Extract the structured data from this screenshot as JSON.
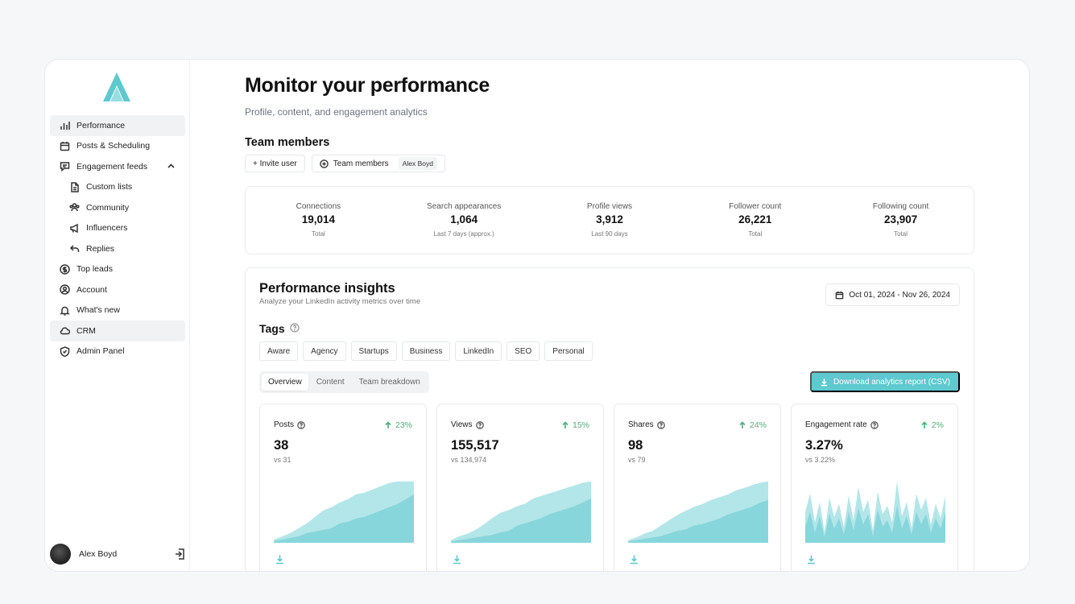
{
  "colors": {
    "accent": "#5ec9cf",
    "chart_light": "#b3e6e9",
    "chart_dark": "#7fd2d8",
    "positive": "#4caf7a"
  },
  "sidebar": {
    "items": [
      {
        "label": "Performance",
        "icon": "bar-chart-icon",
        "active": true
      },
      {
        "label": "Posts & Scheduling",
        "icon": "calendar-icon"
      },
      {
        "label": "Engagement feeds",
        "icon": "chat-icon",
        "expanded": true
      },
      {
        "label": "Custom lists",
        "icon": "document-icon",
        "sub": true
      },
      {
        "label": "Community",
        "icon": "community-icon",
        "sub": true
      },
      {
        "label": "Influencers",
        "icon": "megaphone-icon",
        "sub": true
      },
      {
        "label": "Replies",
        "icon": "reply-icon",
        "sub": true
      },
      {
        "label": "Top leads",
        "icon": "dollar-icon"
      },
      {
        "label": "Account",
        "icon": "user-circle-icon"
      },
      {
        "label": "What's new",
        "icon": "bell-icon"
      },
      {
        "label": "CRM",
        "icon": "cloud-icon",
        "active": true
      },
      {
        "label": "Admin Panel",
        "icon": "shield-icon"
      }
    ],
    "user": {
      "name": "Alex Boyd"
    }
  },
  "header": {
    "title": "Monitor your performance",
    "subtitle": "Profile, content, and engagement analytics"
  },
  "team": {
    "title": "Team members",
    "invite_label": "+ Invite user",
    "members_label": "Team members",
    "selected_member": "Alex Boyd"
  },
  "stats": [
    {
      "label": "Connections",
      "value": "19,014",
      "sub": "Total"
    },
    {
      "label": "Search appearances",
      "value": "1,064",
      "sub": "Last 7 days (approx.)"
    },
    {
      "label": "Profile views",
      "value": "3,912",
      "sub": "Last 90 days"
    },
    {
      "label": "Follower count",
      "value": "26,221",
      "sub": "Total"
    },
    {
      "label": "Following count",
      "value": "23,907",
      "sub": "Total"
    }
  ],
  "insights": {
    "title": "Performance insights",
    "subtitle": "Analyze your LinkedIn activity metrics over time",
    "date_range": "Oct 01, 2024 - Nov 26, 2024",
    "tags_title": "Tags",
    "tags": [
      "Aware",
      "Agency",
      "Startups",
      "Business",
      "LinkedIn",
      "SEO",
      "Personal"
    ],
    "tabs": [
      "Overview",
      "Content",
      "Team breakdown"
    ],
    "active_tab": "Overview",
    "download_label": "Download analytics report (CSV)"
  },
  "cards": [
    {
      "label": "Posts",
      "value": "38",
      "vs": "vs 31",
      "delta": "23%"
    },
    {
      "label": "Views",
      "value": "155,517",
      "vs": "vs 134,974",
      "delta": "15%"
    },
    {
      "label": "Shares",
      "value": "98",
      "vs": "vs 79",
      "delta": "24%"
    },
    {
      "label": "Engagement rate",
      "value": "3.27%",
      "vs": "vs 3.22%",
      "delta": "2%"
    }
  ],
  "chart_data": [
    {
      "type": "area",
      "title": "Posts",
      "series": [
        {
          "values": [
            2,
            4,
            6,
            9,
            12,
            16,
            20,
            22,
            25,
            27,
            30,
            31,
            33,
            35,
            37,
            38,
            38,
            38
          ]
        },
        {
          "values": [
            1,
            2,
            3,
            4,
            6,
            7,
            8,
            9,
            12,
            13,
            15,
            16,
            18,
            20,
            22,
            24,
            27,
            30
          ]
        }
      ]
    },
    {
      "type": "area",
      "title": "Views",
      "series": [
        {
          "values": [
            2,
            5,
            7,
            10,
            14,
            19,
            23,
            25,
            28,
            30,
            34,
            36,
            38,
            40,
            42,
            44,
            46,
            47
          ]
        },
        {
          "values": [
            1,
            2,
            3,
            4,
            5,
            6,
            8,
            9,
            13,
            15,
            17,
            19,
            22,
            24,
            26,
            28,
            31,
            34
          ]
        }
      ]
    },
    {
      "type": "area",
      "title": "Shares",
      "series": [
        {
          "values": [
            2,
            4,
            7,
            9,
            13,
            17,
            21,
            24,
            27,
            29,
            32,
            34,
            36,
            39,
            41,
            43,
            45,
            46
          ]
        },
        {
          "values": [
            1,
            2,
            3,
            4,
            5,
            7,
            9,
            10,
            13,
            14,
            16,
            18,
            21,
            23,
            25,
            27,
            30,
            32
          ]
        }
      ]
    },
    {
      "type": "area",
      "title": "Engagement rate",
      "series": [
        {
          "values": [
            30,
            48,
            20,
            40,
            10,
            44,
            25,
            38,
            15,
            46,
            22,
            55,
            30,
            42,
            12,
            50,
            28,
            36,
            20,
            60,
            26,
            40,
            14,
            48,
            32,
            44,
            18,
            38,
            24,
            46
          ]
        },
        {
          "values": [
            16,
            30,
            10,
            26,
            6,
            28,
            14,
            24,
            8,
            30,
            12,
            34,
            18,
            28,
            6,
            32,
            16,
            22,
            10,
            36,
            14,
            26,
            8,
            30,
            18,
            28,
            10,
            24,
            14,
            30
          ]
        }
      ]
    }
  ]
}
